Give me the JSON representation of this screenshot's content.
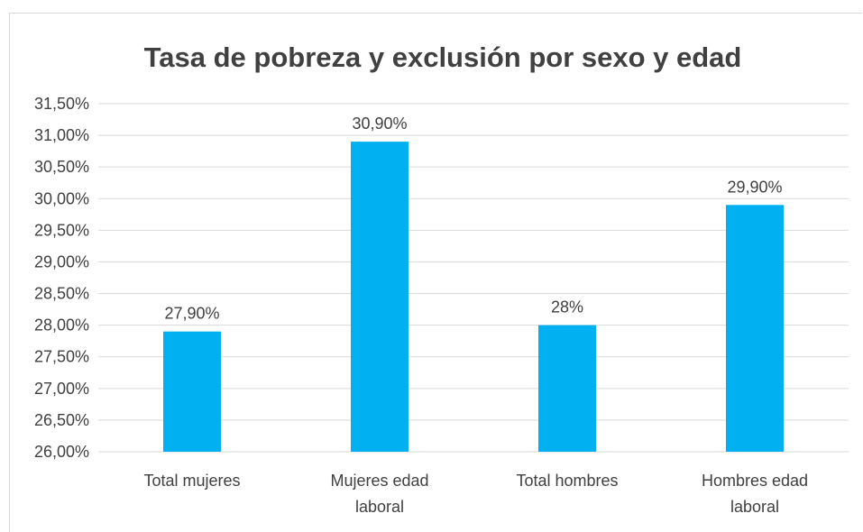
{
  "chart_data": {
    "type": "bar",
    "title": "Tasa de pobreza y exclusión por sexo y edad",
    "xlabel": "",
    "ylabel": "",
    "categories": [
      [
        "Total mujeres"
      ],
      [
        "Mujeres edad",
        "laboral"
      ],
      [
        "Total hombres"
      ],
      [
        "Hombres edad",
        "laboral"
      ]
    ],
    "values": [
      27.9,
      30.9,
      28.0,
      29.9
    ],
    "data_labels": [
      "27,90%",
      "30,90%",
      "28%",
      "29,90%"
    ],
    "ylim": [
      26.0,
      31.5
    ],
    "yticks": [
      26.0,
      26.5,
      27.0,
      27.5,
      28.0,
      28.5,
      29.0,
      29.5,
      30.0,
      30.5,
      31.0,
      31.5
    ],
    "ytick_labels": [
      "26,00%",
      "26,50%",
      "27,00%",
      "27,50%",
      "28,00%",
      "28,50%",
      "29,00%",
      "29,50%",
      "30,00%",
      "30,50%",
      "31,00%",
      "31,50%"
    ],
    "grid": true,
    "bar_color": "#00b0f0",
    "grid_color": "#d9d9d9",
    "text_color": "#404040"
  }
}
